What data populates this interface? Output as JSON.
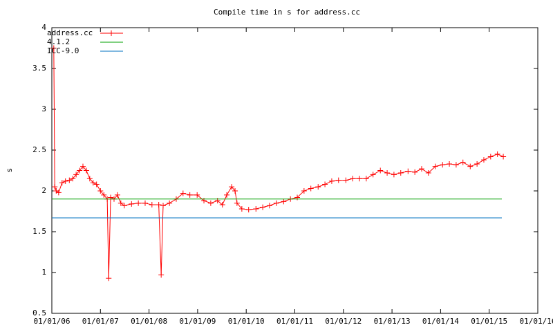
{
  "chart_data": {
    "type": "line",
    "title": "Compile time in s for address.cc",
    "ylabel": "s",
    "legend": "upper left",
    "xlim": [
      2006,
      2016
    ],
    "xticks": [
      {
        "value": 2006,
        "label": "01/01/06"
      },
      {
        "value": 2007,
        "label": "01/01/07"
      },
      {
        "value": 2008,
        "label": "01/01/08"
      },
      {
        "value": 2009,
        "label": "01/01/09"
      },
      {
        "value": 2010,
        "label": "01/01/10"
      },
      {
        "value": 2011,
        "label": "01/01/11"
      },
      {
        "value": 2012,
        "label": "01/01/12"
      },
      {
        "value": 2013,
        "label": "01/01/13"
      },
      {
        "value": 2014,
        "label": "01/01/14"
      },
      {
        "value": 2015,
        "label": "01/01/15"
      },
      {
        "value": 2016,
        "label": "01/01/16"
      }
    ],
    "ylim": [
      0.5,
      4
    ],
    "yticks": [
      0.5,
      1,
      1.5,
      2,
      2.5,
      3,
      3.5,
      4
    ],
    "series": [
      {
        "name": "address.cc",
        "color": "#ff0000",
        "marker": "+",
        "x": [
          2006.04,
          2006.06,
          2006.09,
          2006.14,
          2006.21,
          2006.28,
          2006.36,
          2006.43,
          2006.5,
          2006.57,
          2006.64,
          2006.71,
          2006.78,
          2006.85,
          2006.92,
          2007.0,
          2007.07,
          2007.14,
          2007.17,
          2007.21,
          2007.28,
          2007.35,
          2007.42,
          2007.49,
          2007.64,
          2007.78,
          2007.92,
          2008.06,
          2008.2,
          2008.25,
          2008.29,
          2008.42,
          2008.56,
          2008.7,
          2008.84,
          2008.99,
          2009.13,
          2009.27,
          2009.41,
          2009.51,
          2009.6,
          2009.7,
          2009.77,
          2009.81,
          2009.91,
          2010.05,
          2010.2,
          2010.34,
          2010.48,
          2010.62,
          2010.77,
          2010.91,
          2011.05,
          2011.19,
          2011.33,
          2011.48,
          2011.62,
          2011.76,
          2011.9,
          2012.05,
          2012.19,
          2012.33,
          2012.47,
          2012.61,
          2012.76,
          2012.9,
          2013.04,
          2013.18,
          2013.33,
          2013.47,
          2013.61,
          2013.75,
          2013.89,
          2014.04,
          2014.18,
          2014.32,
          2014.46,
          2014.61,
          2014.75,
          2014.89,
          2015.03,
          2015.17,
          2015.29
        ],
        "values": [
          3.75,
          2.05,
          2.0,
          1.98,
          2.1,
          2.12,
          2.13,
          2.15,
          2.2,
          2.25,
          2.3,
          2.25,
          2.15,
          2.1,
          2.08,
          2.0,
          1.95,
          1.9,
          0.93,
          1.92,
          1.9,
          1.95,
          1.85,
          1.82,
          1.84,
          1.85,
          1.85,
          1.83,
          1.83,
          0.97,
          1.82,
          1.85,
          1.9,
          1.97,
          1.95,
          1.95,
          1.88,
          1.85,
          1.88,
          1.83,
          1.95,
          2.05,
          2.0,
          1.85,
          1.78,
          1.77,
          1.78,
          1.8,
          1.82,
          1.85,
          1.87,
          1.9,
          1.92,
          2.0,
          2.03,
          2.05,
          2.08,
          2.12,
          2.13,
          2.13,
          2.15,
          2.15,
          2.15,
          2.2,
          2.25,
          2.22,
          2.2,
          2.22,
          2.24,
          2.23,
          2.27,
          2.22,
          2.3,
          2.32,
          2.33,
          2.32,
          2.35,
          2.3,
          2.33,
          2.38,
          2.42,
          2.45,
          2.42
        ]
      },
      {
        "name": "4.1.2",
        "color": "#00a000",
        "x": [
          2006,
          2015.26
        ],
        "values": [
          1.9,
          1.9
        ]
      },
      {
        "name": "ICC-9.0",
        "color": "#0070c0",
        "x": [
          2006,
          2015.26
        ],
        "values": [
          1.67,
          1.67
        ]
      }
    ]
  }
}
